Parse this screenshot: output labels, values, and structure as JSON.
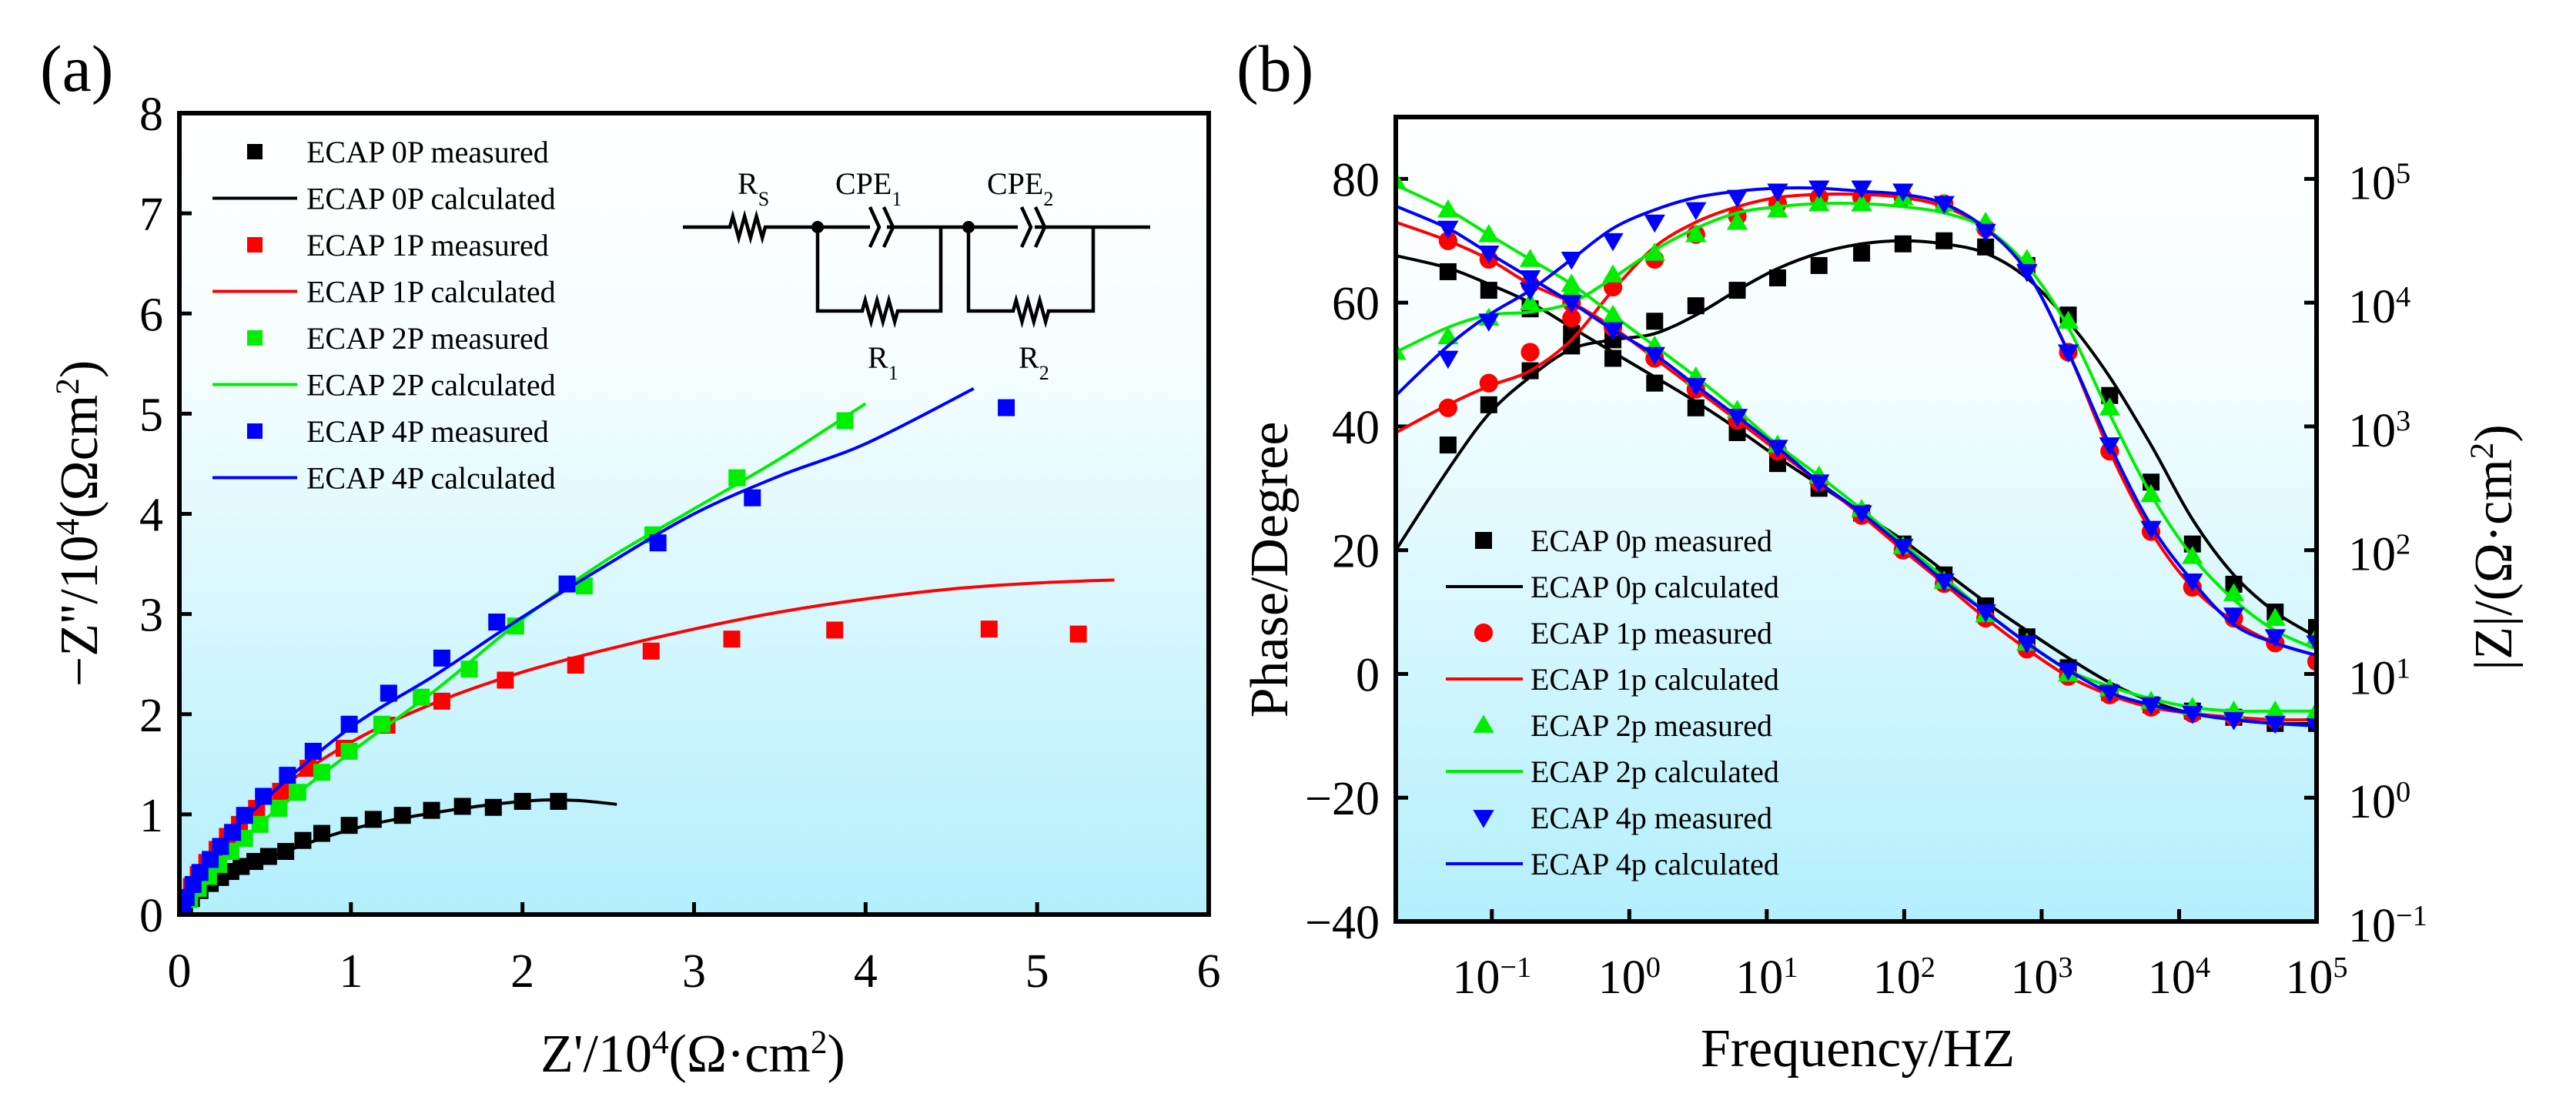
{
  "chart_data": [
    {
      "panel_label": "(a)",
      "type": "scatter",
      "title": "",
      "xlabel_parts": [
        {
          "t": "Z'/10"
        },
        {
          "t": "4",
          "sup": true
        },
        {
          "t": "(Ω·cm"
        },
        {
          "t": "2",
          "sup": true
        },
        {
          "t": ")"
        }
      ],
      "ylabel_parts": [
        {
          "t": "−Z''/10"
        },
        {
          "t": "4",
          "sup": true
        },
        {
          "t": "(Ωcm"
        },
        {
          "t": "2",
          "sup": true
        },
        {
          "t": ")"
        }
      ],
      "xlim": [
        0,
        6
      ],
      "ylim": [
        0,
        8
      ],
      "xticks": [
        "0",
        "1",
        "2",
        "3",
        "4",
        "5",
        "6"
      ],
      "yticks": [
        "0",
        "1",
        "2",
        "3",
        "4",
        "5",
        "6",
        "7",
        "8"
      ],
      "grid": false,
      "legend_position": "top-left",
      "circuit": {
        "labels": [
          {
            "base": "R",
            "sub": "S"
          },
          {
            "base": "CPE",
            "sub": "1"
          },
          {
            "base": "CPE",
            "sub": "2"
          },
          {
            "base": "R",
            "sub": "1"
          },
          {
            "base": "R",
            "sub": "2"
          }
        ]
      },
      "series": [
        {
          "name": "ECAP 0P measured",
          "kind": "measured",
          "marker": "square",
          "color": "#000000",
          "x": [
            0.03,
            0.07,
            0.12,
            0.18,
            0.24,
            0.3,
            0.36,
            0.44,
            0.52,
            0.62,
            0.72,
            0.83,
            0.99,
            1.13,
            1.3,
            1.47,
            1.65,
            1.83,
            2.0,
            2.21
          ],
          "y": [
            0.08,
            0.16,
            0.24,
            0.31,
            0.37,
            0.43,
            0.48,
            0.53,
            0.58,
            0.63,
            0.74,
            0.81,
            0.89,
            0.95,
            0.99,
            1.04,
            1.08,
            1.07,
            1.13,
            1.13
          ]
        },
        {
          "name": "ECAP 0P calculated",
          "kind": "calculated",
          "color": "#000000",
          "x": [
            0,
            0.2,
            0.5,
            1.0,
            1.5,
            2.0,
            2.3,
            2.55
          ],
          "y": [
            0,
            0.3,
            0.55,
            0.85,
            1.02,
            1.13,
            1.14,
            1.1
          ]
        },
        {
          "name": "ECAP 1P measured",
          "kind": "measured",
          "marker": "square",
          "color": "#ff0000",
          "x": [
            0.03,
            0.07,
            0.11,
            0.16,
            0.22,
            0.28,
            0.35,
            0.45,
            0.59,
            0.75,
            0.96,
            1.21,
            1.53,
            1.9,
            2.31,
            2.75,
            3.22,
            3.82,
            4.72,
            5.24
          ],
          "y": [
            0.15,
            0.28,
            0.4,
            0.52,
            0.65,
            0.78,
            0.9,
            1.06,
            1.23,
            1.46,
            1.66,
            1.89,
            2.13,
            2.34,
            2.49,
            2.63,
            2.75,
            2.84,
            2.85,
            2.8
          ]
        },
        {
          "name": "ECAP 1P calculated",
          "kind": "calculated",
          "color": "#ff0000",
          "x": [
            0,
            0.2,
            0.5,
            1.0,
            1.5,
            2.0,
            2.5,
            3.0,
            3.5,
            4.0,
            4.5,
            5.0,
            5.45
          ],
          "y": [
            0,
            0.65,
            1.15,
            1.72,
            2.12,
            2.42,
            2.65,
            2.85,
            3.02,
            3.15,
            3.25,
            3.31,
            3.34
          ]
        },
        {
          "name": "ECAP 2P measured",
          "kind": "measured",
          "marker": "square",
          "color": "#00ee00",
          "x": [
            0.06,
            0.11,
            0.17,
            0.23,
            0.3,
            0.38,
            0.47,
            0.58,
            0.69,
            0.83,
            0.99,
            1.18,
            1.41,
            1.69,
            1.96,
            2.36,
            2.76,
            3.25,
            3.88
          ],
          "y": [
            0.15,
            0.26,
            0.38,
            0.5,
            0.63,
            0.76,
            0.9,
            1.06,
            1.22,
            1.42,
            1.63,
            1.9,
            2.17,
            2.45,
            2.88,
            3.28,
            3.79,
            4.36,
            4.93
          ]
        },
        {
          "name": "ECAP 2P calculated",
          "kind": "calculated",
          "color": "#00ee00",
          "x": [
            0,
            0.2,
            0.5,
            1.0,
            1.5,
            2.0,
            2.5,
            3.0,
            3.5,
            4.0
          ],
          "y": [
            0,
            0.45,
            0.95,
            1.62,
            2.25,
            2.95,
            3.55,
            4.05,
            4.55,
            5.1
          ]
        },
        {
          "name": "ECAP 4P measured",
          "kind": "measured",
          "marker": "square",
          "color": "#0000ff",
          "x": [
            0.02,
            0.04,
            0.08,
            0.12,
            0.18,
            0.24,
            0.31,
            0.38,
            0.49,
            0.63,
            0.78,
            0.99,
            1.22,
            1.53,
            1.85,
            2.26,
            2.79,
            3.34,
            4.82
          ],
          "y": [
            0.06,
            0.17,
            0.3,
            0.42,
            0.55,
            0.68,
            0.82,
            0.99,
            1.18,
            1.39,
            1.63,
            1.9,
            2.21,
            2.56,
            2.92,
            3.3,
            3.71,
            4.16,
            5.06
          ]
        },
        {
          "name": "ECAP 4P calculated",
          "kind": "calculated",
          "color": "#0000ff",
          "x": [
            0,
            0.2,
            0.5,
            1.0,
            1.5,
            2.0,
            2.5,
            3.0,
            3.5,
            4.0,
            4.63
          ],
          "y": [
            0,
            0.6,
            1.15,
            1.87,
            2.4,
            2.97,
            3.5,
            4.0,
            4.38,
            4.7,
            5.25
          ]
        }
      ]
    },
    {
      "panel_label": "(b)",
      "type": "line",
      "title": "",
      "xlabel": "Frequency/HZ",
      "ylabel_left": "Phase/Degree",
      "ylabel_right_parts": [
        {
          "t": "|Z|/(Ω·cm"
        },
        {
          "t": "2",
          "sup": true
        },
        {
          "t": ")"
        }
      ],
      "xscale": "log",
      "xlim_hz": [
        0.02,
        100000
      ],
      "ylim_phase": [
        -40,
        90
      ],
      "ylim_Z_log10": [
        -1,
        5.5
      ],
      "xticks": [
        {
          "b": "10",
          "e": "−1"
        },
        {
          "b": "10",
          "e": "0"
        },
        {
          "b": "10",
          "e": "1"
        },
        {
          "b": "10",
          "e": "2"
        },
        {
          "b": "10",
          "e": "3"
        },
        {
          "b": "10",
          "e": "4"
        },
        {
          "b": "10",
          "e": "5"
        }
      ],
      "yticks_left": [
        "80",
        "60",
        "40",
        "20",
        "0",
        "−20",
        "−40"
      ],
      "yticks_right": [
        {
          "b": "10",
          "e": "5"
        },
        {
          "b": "10",
          "e": "4"
        },
        {
          "b": "10",
          "e": "3"
        },
        {
          "b": "10",
          "e": "2"
        },
        {
          "b": "10",
          "e": "1"
        },
        {
          "b": "10",
          "e": "0"
        },
        {
          "b": "10",
          "e": "−1"
        }
      ],
      "grid": false,
      "legend_position": "bottom-left",
      "freq_measured_hz": [
        0.048,
        0.095,
        0.19,
        0.38,
        0.76,
        1.53,
        3.05,
        6.1,
        12,
        24,
        49,
        98,
        195,
        391,
        781,
        1562,
        3125,
        6250,
        12500,
        25000,
        50000,
        100000
      ],
      "freq_measured_2p_hz": [
        0.02,
        0.048,
        0.095,
        0.19,
        0.38,
        0.76,
        1.53,
        3.05,
        6.1,
        12,
        24,
        49,
        98,
        195,
        391,
        781,
        1562,
        3125,
        6250,
        12500,
        25000,
        50000,
        100000
      ],
      "freq_calculated_hz": [
        0.02,
        0.048,
        0.095,
        0.19,
        0.38,
        0.76,
        1.53,
        3.05,
        6.1,
        12,
        24,
        49,
        98,
        195,
        391,
        781,
        1562,
        3125,
        6250,
        12500,
        25000,
        50000,
        100000
      ],
      "series": [
        {
          "name": "ECAP 0p measured",
          "kind": "measured",
          "marker": "square",
          "color": "#000000",
          "freq": "freq_measured_hz",
          "phase": [
            37,
            43.5,
            49,
            53,
            54,
            57,
            59.5,
            62,
            64,
            66,
            68,
            69.5,
            70,
            69,
            66,
            58,
            45,
            31,
            21,
            14.5,
            10,
            7.5
          ],
          "Z_log10": [
            4.25,
            4.1,
            3.95,
            3.75,
            3.55,
            3.35,
            3.15,
            2.95,
            2.7,
            2.5,
            2.3,
            2.05,
            1.8,
            1.55,
            1.3,
            1.05,
            0.85,
            0.75,
            0.7,
            0.65,
            0.6,
            0.6
          ]
        },
        {
          "name": "ECAP 0p calculated",
          "kind": "calculated",
          "color": "#000000",
          "freq": "freq_calculated_hz",
          "phase": [
            20,
            33,
            42,
            48,
            52.5,
            54,
            55,
            58,
            62,
            65.5,
            68,
            69.5,
            70,
            69.5,
            68,
            64,
            57,
            48,
            37,
            25,
            16,
            10,
            6
          ],
          "Z_log10": [
            4.38,
            4.28,
            4.15,
            4.0,
            3.8,
            3.6,
            3.4,
            3.2,
            2.98,
            2.75,
            2.53,
            2.3,
            2.08,
            1.83,
            1.58,
            1.35,
            1.13,
            0.93,
            0.78,
            0.68,
            0.63,
            0.6,
            0.6
          ]
        },
        {
          "name": "ECAP 1p measured",
          "kind": "measured",
          "marker": "circle",
          "color": "#ff0000",
          "freq": "freq_measured_hz",
          "phase": [
            43,
            47,
            52,
            57.5,
            62.5,
            67,
            71,
            74,
            76,
            77,
            77,
            77,
            76,
            72,
            66,
            52,
            36,
            23,
            14,
            9,
            5,
            2
          ],
          "Z_log10": [
            4.5,
            4.35,
            4.15,
            4.0,
            3.8,
            3.55,
            3.3,
            3.05,
            2.8,
            2.55,
            2.28,
            2.0,
            1.73,
            1.45,
            1.2,
            0.98,
            0.83,
            0.73,
            0.68,
            0.65,
            0.63,
            0.63
          ]
        },
        {
          "name": "ECAP 1p calculated",
          "kind": "calculated",
          "color": "#ff0000",
          "freq": "freq_calculated_hz",
          "phase": [
            39,
            43.5,
            46.5,
            49,
            54,
            62,
            69,
            73,
            75.5,
            77,
            77.5,
            77.5,
            77,
            75.5,
            72,
            65,
            52,
            36,
            23,
            14,
            8.5,
            5,
            3
          ],
          "Z_log10": [
            4.65,
            4.5,
            4.35,
            4.15,
            4.0,
            3.8,
            3.55,
            3.3,
            3.05,
            2.8,
            2.55,
            2.28,
            2.0,
            1.73,
            1.45,
            1.2,
            0.98,
            0.83,
            0.73,
            0.68,
            0.65,
            0.63,
            0.63
          ]
        },
        {
          "name": "ECAP 2p measured",
          "kind": "measured",
          "marker": "triangle-up",
          "color": "#00ee00",
          "freq": "freq_measured_2p_hz",
          "phase": [
            52,
            54.5,
            57.5,
            60,
            62,
            64.5,
            68,
            71,
            73,
            75,
            76,
            76,
            77,
            76,
            73,
            67,
            57,
            43,
            29,
            19,
            13,
            9,
            6
          ],
          "Z_log10": [
            4.98,
            4.75,
            4.55,
            4.35,
            4.15,
            3.9,
            3.65,
            3.4,
            3.13,
            2.85,
            2.6,
            2.33,
            2.03,
            1.75,
            1.48,
            1.25,
            1.0,
            0.88,
            0.78,
            0.73,
            0.7,
            0.7,
            0.7
          ]
        },
        {
          "name": "ECAP 2p calculated",
          "kind": "calculated",
          "color": "#00ee00",
          "freq": "freq_calculated_hz",
          "phase": [
            52,
            56,
            58,
            58.5,
            60,
            64,
            68.5,
            72,
            74.5,
            75.5,
            76,
            76,
            75.5,
            74.5,
            72,
            66,
            56,
            42,
            29,
            19,
            12,
            7,
            4
          ],
          "Z_log10": [
            4.95,
            4.75,
            4.55,
            4.35,
            4.15,
            3.9,
            3.65,
            3.4,
            3.13,
            2.85,
            2.6,
            2.33,
            2.05,
            1.78,
            1.5,
            1.25,
            1.03,
            0.9,
            0.8,
            0.73,
            0.7,
            0.7,
            0.7
          ]
        },
        {
          "name": "ECAP 4p measured",
          "kind": "measured",
          "marker": "triangle-down",
          "color": "#0000ff",
          "freq": "freq_measured_hz",
          "phase": [
            51,
            57,
            62,
            67,
            70,
            73,
            75,
            77,
            78,
            78.5,
            78.5,
            78,
            76,
            71.5,
            65,
            52,
            37,
            23.5,
            15,
            9.5,
            6,
            5
          ],
          "Z_log10": [
            4.6,
            4.4,
            4.2,
            4.0,
            3.78,
            3.58,
            3.33,
            3.08,
            2.83,
            2.55,
            2.3,
            2.03,
            1.75,
            1.5,
            1.25,
            1.03,
            0.85,
            0.75,
            0.68,
            0.63,
            0.6,
            0.58
          ]
        },
        {
          "name": "ECAP 4p calculated",
          "kind": "calculated",
          "color": "#0000ff",
          "freq": "freq_calculated_hz",
          "phase": [
            45,
            53,
            58,
            62,
            67,
            72,
            75,
            77,
            78,
            78.5,
            78.5,
            78,
            77.5,
            76,
            72,
            65,
            52,
            37,
            24,
            15,
            8,
            5,
            3
          ],
          "Z_log10": [
            4.78,
            4.6,
            4.4,
            4.2,
            4.0,
            3.78,
            3.58,
            3.33,
            3.08,
            2.83,
            2.55,
            2.3,
            2.03,
            1.75,
            1.5,
            1.25,
            1.03,
            0.85,
            0.75,
            0.68,
            0.63,
            0.6,
            0.58
          ]
        }
      ]
    }
  ]
}
